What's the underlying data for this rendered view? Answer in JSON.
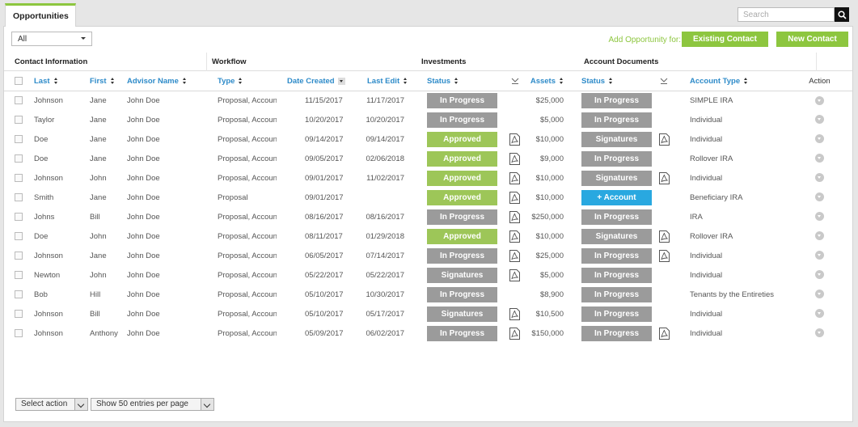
{
  "tab": {
    "label": "Opportunities"
  },
  "search": {
    "placeholder": "Search"
  },
  "filter": {
    "value": "All"
  },
  "add_opportunity": {
    "label": "Add Opportunity for:",
    "existing_label": "Existing Contact",
    "new_label": "New Contact"
  },
  "groups": {
    "contact": "Contact Information",
    "workflow": "Workflow",
    "investments": "Investments",
    "documents": "Account Documents"
  },
  "columns": {
    "last": "Last",
    "first": "First",
    "advisor": "Advisor Name",
    "type": "Type",
    "date_created": "Date Created",
    "last_edit": "Last Edit",
    "inv_status": "Status",
    "assets": "Assets",
    "doc_status": "Status",
    "account_type": "Account Type",
    "action": "Action"
  },
  "rows": [
    {
      "last": "Johnson",
      "first": "Jane",
      "advisor": "John Doe",
      "type": "Proposal, Account",
      "created": "11/15/2017",
      "edited": "11/17/2017",
      "inv_status": "In Progress",
      "inv_color": "gray",
      "inv_pdf": false,
      "assets": "$25,000",
      "doc_status": "In Progress",
      "doc_color": "gray",
      "doc_pdf": false,
      "account_type": "SIMPLE IRA"
    },
    {
      "last": "Taylor",
      "first": "Jane",
      "advisor": "John Doe",
      "type": "Proposal, Account",
      "created": "10/20/2017",
      "edited": "10/20/2017",
      "inv_status": "In Progress",
      "inv_color": "gray",
      "inv_pdf": false,
      "assets": "$5,000",
      "doc_status": "In Progress",
      "doc_color": "gray",
      "doc_pdf": false,
      "account_type": "Individual"
    },
    {
      "last": "Doe",
      "first": "Jane",
      "advisor": "John Doe",
      "type": "Proposal, Account",
      "created": "09/14/2017",
      "edited": "09/14/2017",
      "inv_status": "Approved",
      "inv_color": "green",
      "inv_pdf": true,
      "assets": "$10,000",
      "doc_status": "Signatures",
      "doc_color": "gray",
      "doc_pdf": true,
      "account_type": "Individual"
    },
    {
      "last": "Doe",
      "first": "Jane",
      "advisor": "John Doe",
      "type": "Proposal, Account",
      "created": "09/05/2017",
      "edited": "02/06/2018",
      "inv_status": "Approved",
      "inv_color": "green",
      "inv_pdf": true,
      "assets": "$9,000",
      "doc_status": "In Progress",
      "doc_color": "gray",
      "doc_pdf": false,
      "account_type": "Rollover IRA"
    },
    {
      "last": "Johnson",
      "first": "John",
      "advisor": "John Doe",
      "type": "Proposal, Account",
      "created": "09/01/2017",
      "edited": "11/02/2017",
      "inv_status": "Approved",
      "inv_color": "green",
      "inv_pdf": true,
      "assets": "$10,000",
      "doc_status": "Signatures",
      "doc_color": "gray",
      "doc_pdf": true,
      "account_type": "Individual"
    },
    {
      "last": "Smith",
      "first": "Jane",
      "advisor": "John Doe",
      "type": "Proposal",
      "created": "09/01/2017",
      "edited": "",
      "inv_status": "Approved",
      "inv_color": "green",
      "inv_pdf": true,
      "assets": "$10,000",
      "doc_status": "+ Account",
      "doc_color": "blue",
      "doc_pdf": false,
      "account_type": "Beneficiary IRA"
    },
    {
      "last": "Johns",
      "first": "Bill",
      "advisor": "John Doe",
      "type": "Proposal, Account",
      "created": "08/16/2017",
      "edited": "08/16/2017",
      "inv_status": "In Progress",
      "inv_color": "gray",
      "inv_pdf": true,
      "assets": "$250,000",
      "doc_status": "In Progress",
      "doc_color": "gray",
      "doc_pdf": false,
      "account_type": "IRA"
    },
    {
      "last": "Doe",
      "first": "John",
      "advisor": "John Doe",
      "type": "Proposal, Account",
      "created": "08/11/2017",
      "edited": "01/29/2018",
      "inv_status": "Approved",
      "inv_color": "green",
      "inv_pdf": true,
      "assets": "$10,000",
      "doc_status": "Signatures",
      "doc_color": "gray",
      "doc_pdf": true,
      "account_type": "Rollover IRA"
    },
    {
      "last": "Johnson",
      "first": "Jane",
      "advisor": "John Doe",
      "type": "Proposal, Account",
      "created": "06/05/2017",
      "edited": "07/14/2017",
      "inv_status": "In Progress",
      "inv_color": "gray",
      "inv_pdf": true,
      "assets": "$25,000",
      "doc_status": "In Progress",
      "doc_color": "gray",
      "doc_pdf": true,
      "account_type": "Individual"
    },
    {
      "last": "Newton",
      "first": "John",
      "advisor": "John Doe",
      "type": "Proposal, Account",
      "created": "05/22/2017",
      "edited": "05/22/2017",
      "inv_status": "Signatures",
      "inv_color": "gray",
      "inv_pdf": true,
      "assets": "$5,000",
      "doc_status": "In Progress",
      "doc_color": "gray",
      "doc_pdf": false,
      "account_type": "Individual"
    },
    {
      "last": "Bob",
      "first": "Hill",
      "advisor": "John Doe",
      "type": "Proposal, Account",
      "created": "05/10/2017",
      "edited": "10/30/2017",
      "inv_status": "In Progress",
      "inv_color": "gray",
      "inv_pdf": false,
      "assets": "$8,900",
      "doc_status": "In Progress",
      "doc_color": "gray",
      "doc_pdf": false,
      "account_type": "Tenants by the Entireties"
    },
    {
      "last": "Johnson",
      "first": "Bill",
      "advisor": "John Doe",
      "type": "Proposal, Account",
      "created": "05/10/2017",
      "edited": "05/17/2017",
      "inv_status": "Signatures",
      "inv_color": "gray",
      "inv_pdf": true,
      "assets": "$10,500",
      "doc_status": "In Progress",
      "doc_color": "gray",
      "doc_pdf": false,
      "account_type": "Individual"
    },
    {
      "last": "Johnson",
      "first": "Anthony",
      "advisor": "John Doe",
      "type": "Proposal, Account",
      "created": "05/09/2017",
      "edited": "06/02/2017",
      "inv_status": "In Progress",
      "inv_color": "gray",
      "inv_pdf": true,
      "assets": "$150,000",
      "doc_status": "In Progress",
      "doc_color": "gray",
      "doc_pdf": true,
      "account_type": "Individual"
    }
  ],
  "footer": {
    "bulk_action": "Select action",
    "page_size": "Show 50 entries per page"
  },
  "colors": {
    "accent_green": "#8dc63f",
    "status_gray": "#9b9b9b",
    "status_green": "#9dc658",
    "status_blue": "#29a8e0",
    "link_blue": "#2e8bc9"
  },
  "icons": {
    "pdf": "pdf-file-icon",
    "search": "magnifier-icon",
    "download": "download-icon",
    "row_action": "chevron-down-circle-icon"
  }
}
